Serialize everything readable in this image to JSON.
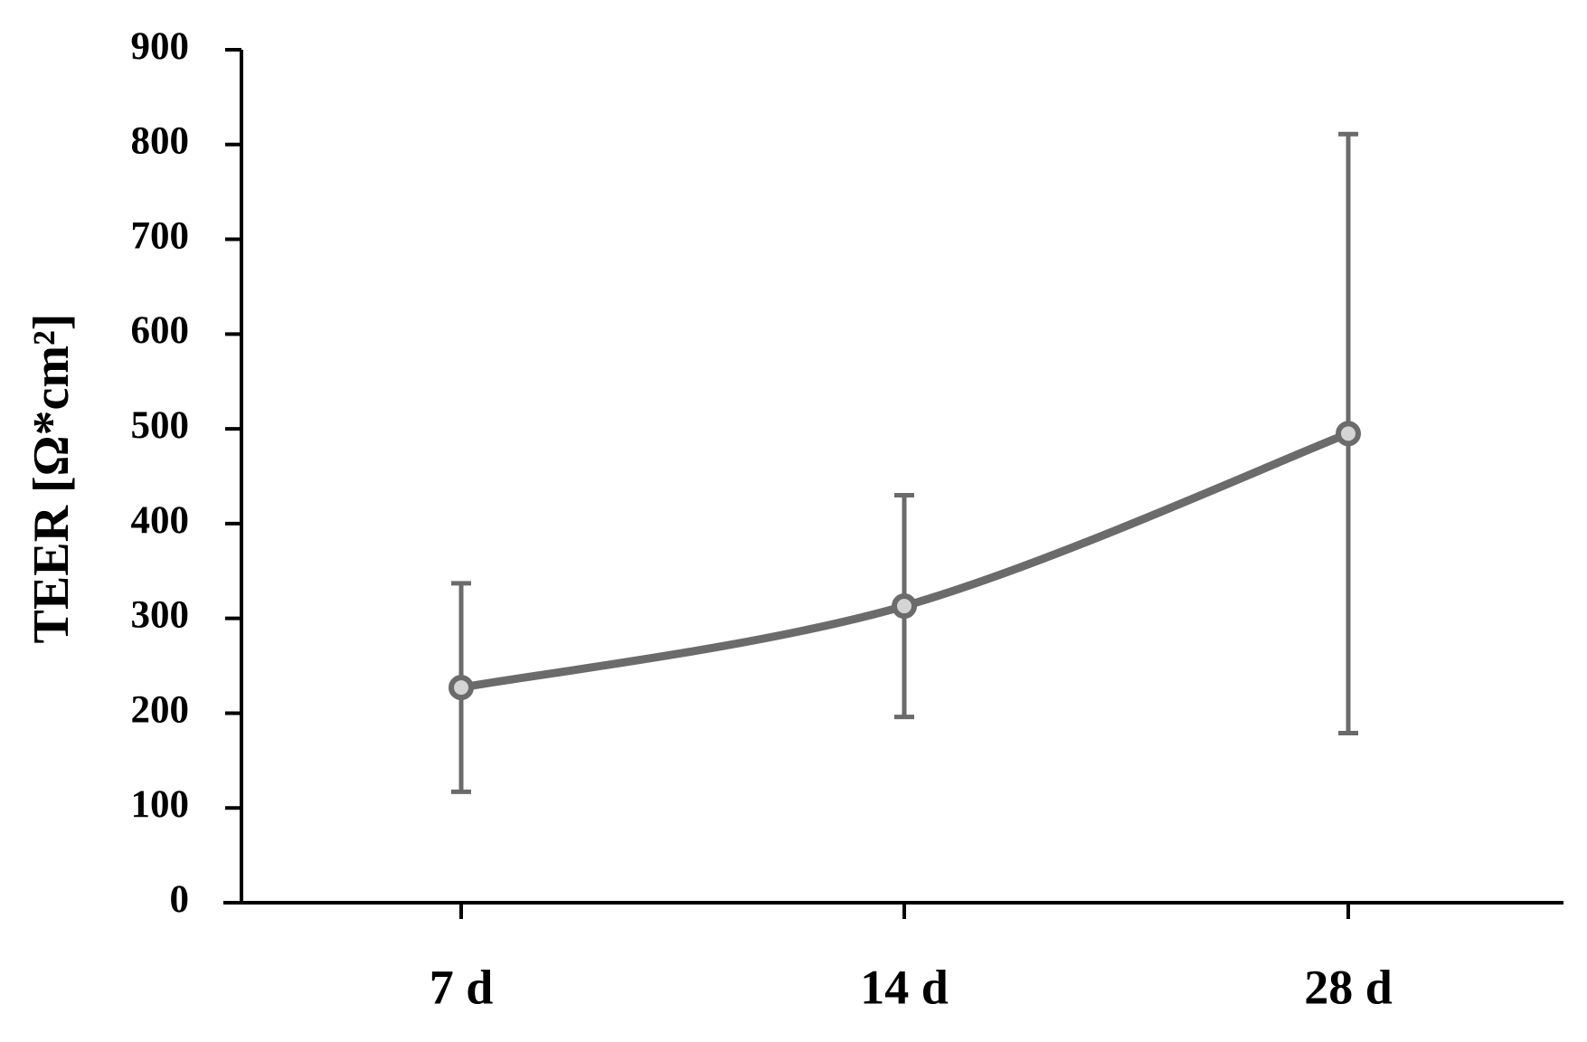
{
  "chart_data": {
    "type": "line",
    "y_label": "TEER [Ω*cm²]",
    "categories": [
      "7 d",
      "14 d",
      "28 d"
    ],
    "series": [
      {
        "name": "TEER",
        "color": "#6b6b6b",
        "values": [
          227,
          313,
          495
        ],
        "errors": [
          110,
          117,
          316
        ]
      }
    ],
    "ylim": [
      0,
      900
    ],
    "yticks": [
      0,
      100,
      200,
      300,
      400,
      500,
      600,
      700,
      800,
      900
    ],
    "smooth": true,
    "grid": false
  }
}
